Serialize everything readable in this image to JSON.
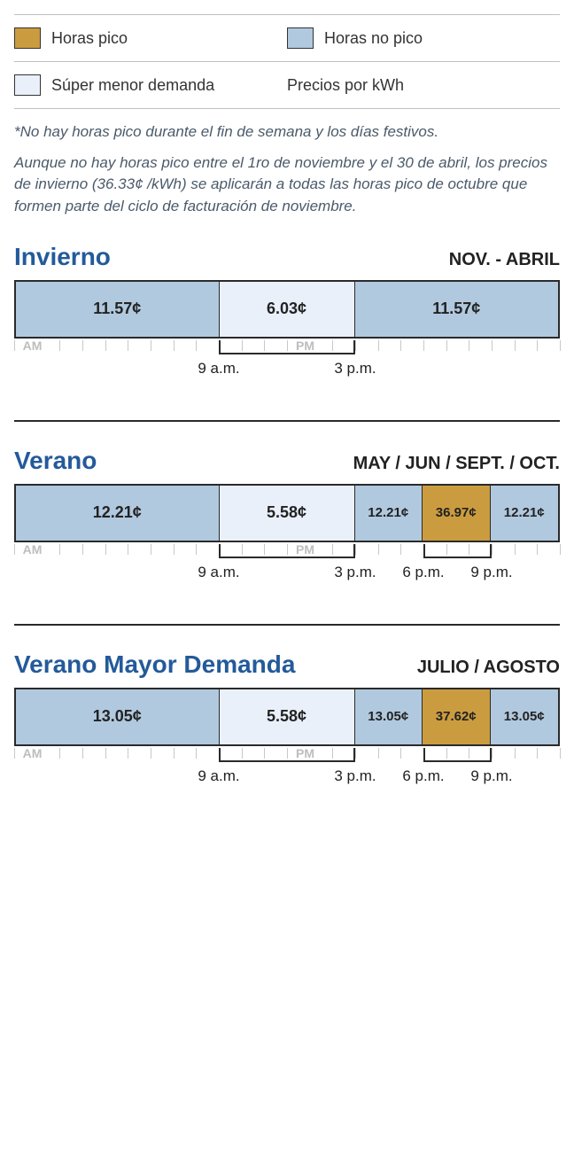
{
  "colors": {
    "peak": "#cb9c3f",
    "offpeak": "#b1c9df",
    "super": "#eaf0fa",
    "title": "#235a9a"
  },
  "legend": {
    "row1": [
      {
        "key": "peak",
        "label": "Horas pico"
      },
      {
        "key": "offpeak",
        "label": "Horas no pico"
      }
    ],
    "row2": [
      {
        "key": "super",
        "label": "Súper menor demanda"
      },
      {
        "key": "none",
        "label": "Precios por kWh"
      }
    ]
  },
  "notes": {
    "line1": "*No hay horas pico durante el fin de semana y los días festivos.",
    "line2": "Aunque no hay horas pico entre el 1ro de noviembre y el 30 de abril, los precios de invierno (36.33¢ /kWh) se aplicarán a todas las horas pico de octubre que formen parte del ciclo de facturación de noviembre."
  },
  "axis": {
    "am": "AM",
    "pm": "PM",
    "total_hours": 24,
    "labels": {
      "9am": "9 a.m.",
      "3pm": "3 p.m.",
      "6pm": "6 p.m.",
      "9pm": "9 p.m."
    }
  },
  "seasons": [
    {
      "id": "winter",
      "title": "Invierno",
      "months": "NOV. - ABRIL",
      "segments": [
        {
          "colorKey": "offpeak",
          "hours": 9,
          "price": "11.57¢",
          "small": false
        },
        {
          "colorKey": "super",
          "hours": 6,
          "price": "6.03¢",
          "small": false
        },
        {
          "colorKey": "offpeak",
          "hours": 9,
          "price": "11.57¢",
          "small": false
        }
      ],
      "brackets": [
        {
          "fromHour": 9,
          "toHour": 15
        }
      ],
      "axisLabels": [
        {
          "hour": 9,
          "textKey": "9am"
        },
        {
          "hour": 15,
          "textKey": "3pm"
        }
      ]
    },
    {
      "id": "summer",
      "title": "Verano",
      "months": "MAY / JUN / SEPT. / OCT.",
      "segments": [
        {
          "colorKey": "offpeak",
          "hours": 9,
          "price": "12.21¢",
          "small": false
        },
        {
          "colorKey": "super",
          "hours": 6,
          "price": "5.58¢",
          "small": false
        },
        {
          "colorKey": "offpeak",
          "hours": 3,
          "price": "12.21¢",
          "small": true
        },
        {
          "colorKey": "peak",
          "hours": 3,
          "price": "36.97¢",
          "small": true
        },
        {
          "colorKey": "offpeak",
          "hours": 3,
          "price": "12.21¢",
          "small": true
        }
      ],
      "brackets": [
        {
          "fromHour": 9,
          "toHour": 15
        },
        {
          "fromHour": 18,
          "toHour": 21
        }
      ],
      "axisLabels": [
        {
          "hour": 9,
          "textKey": "9am"
        },
        {
          "hour": 15,
          "textKey": "3pm"
        },
        {
          "hour": 18,
          "textKey": "6pm"
        },
        {
          "hour": 21,
          "textKey": "9pm"
        }
      ]
    },
    {
      "id": "summer-peak",
      "title": "Verano Mayor Demanda",
      "months": "JULIO / AGOSTO",
      "segments": [
        {
          "colorKey": "offpeak",
          "hours": 9,
          "price": "13.05¢",
          "small": false
        },
        {
          "colorKey": "super",
          "hours": 6,
          "price": "5.58¢",
          "small": false
        },
        {
          "colorKey": "offpeak",
          "hours": 3,
          "price": "13.05¢",
          "small": true
        },
        {
          "colorKey": "peak",
          "hours": 3,
          "price": "37.62¢",
          "small": true
        },
        {
          "colorKey": "offpeak",
          "hours": 3,
          "price": "13.05¢",
          "small": true
        }
      ],
      "brackets": [
        {
          "fromHour": 9,
          "toHour": 15
        },
        {
          "fromHour": 18,
          "toHour": 21
        }
      ],
      "axisLabels": [
        {
          "hour": 9,
          "textKey": "9am"
        },
        {
          "hour": 15,
          "textKey": "3pm"
        },
        {
          "hour": 18,
          "textKey": "6pm"
        },
        {
          "hour": 21,
          "textKey": "9pm"
        }
      ]
    }
  ]
}
